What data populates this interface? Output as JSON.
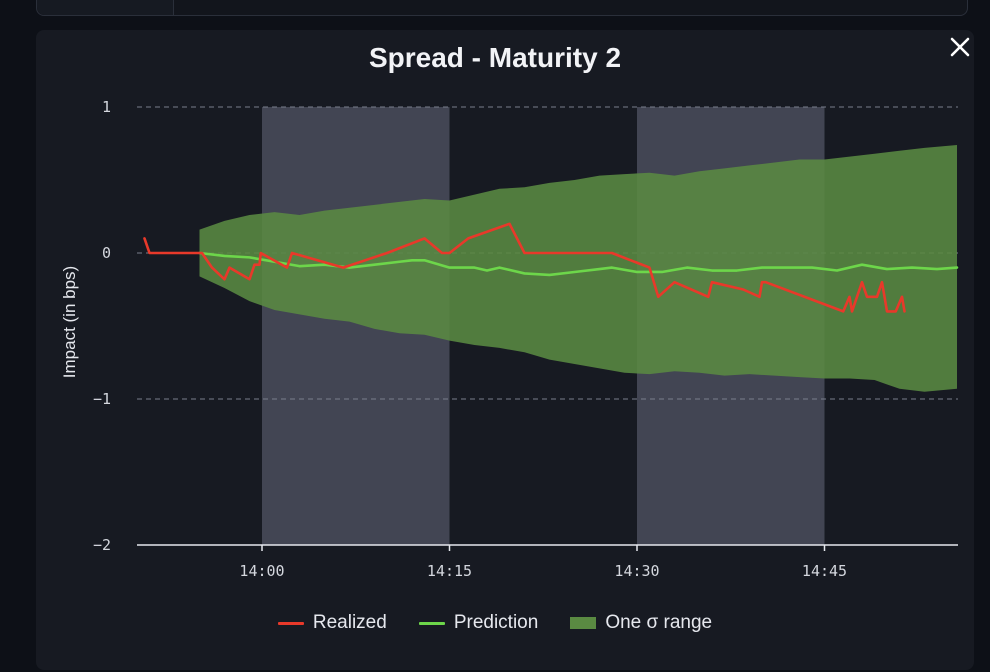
{
  "dialog": {
    "title": "Spread - Maturity 2",
    "close_icon": "close-icon"
  },
  "colors": {
    "realized": "#e8392a",
    "prediction": "#6dd64a",
    "band": "#5a8a42",
    "highlight": "#4a4e5c",
    "panel": "#171a22"
  },
  "chart_data": {
    "type": "line",
    "title": "Spread - Maturity 2",
    "ylabel": "Impact (in bps)",
    "xlabel": "",
    "x_ticks": [
      {
        "minutes": 0,
        "label": "14:00"
      },
      {
        "minutes": 15,
        "label": "14:15"
      },
      {
        "minutes": 30,
        "label": "14:30"
      },
      {
        "minutes": 45,
        "label": "14:45"
      }
    ],
    "y_ticks": [
      {
        "value": 1,
        "label": "1"
      },
      {
        "value": 0,
        "label": "0"
      },
      {
        "value": -1,
        "label": "−1"
      },
      {
        "value": -2,
        "label": "−2"
      }
    ],
    "xlim": [
      -10,
      56
    ],
    "ylim": [
      -2,
      1
    ],
    "grid": "horizontal dashed",
    "shaded_periods": [
      [
        0,
        15
      ],
      [
        30,
        45
      ]
    ],
    "legend": [
      "Realized",
      "Prediction",
      "One σ range"
    ],
    "legend_position": "bottom-center",
    "series": [
      {
        "name": "Realized",
        "points": [
          [
            -9.4,
            0.1
          ],
          [
            -9.0,
            0.0
          ],
          [
            -4.8,
            0.0
          ],
          [
            -4.0,
            -0.1
          ],
          [
            -3.0,
            -0.18
          ],
          [
            -2.6,
            -0.1
          ],
          [
            -1.0,
            -0.18
          ],
          [
            -0.6,
            -0.08
          ],
          [
            -0.2,
            -0.08
          ],
          [
            -0.1,
            0.0
          ],
          [
            2.0,
            -0.1
          ],
          [
            2.4,
            0.0
          ],
          [
            6.5,
            -0.1
          ],
          [
            10.0,
            0.0
          ],
          [
            13.0,
            0.1
          ],
          [
            14.4,
            0.0
          ],
          [
            15.0,
            0.0
          ],
          [
            16.5,
            0.1
          ],
          [
            19.8,
            0.2
          ],
          [
            21.0,
            0.0
          ],
          [
            28.0,
            0.0
          ],
          [
            31.0,
            -0.1
          ],
          [
            31.7,
            -0.3
          ],
          [
            33.0,
            -0.2
          ],
          [
            35.7,
            -0.3
          ],
          [
            36.0,
            -0.2
          ],
          [
            38.5,
            -0.25
          ],
          [
            39.8,
            -0.3
          ],
          [
            40.0,
            -0.2
          ],
          [
            40.3,
            -0.2
          ],
          [
            46.5,
            -0.4
          ],
          [
            47.0,
            -0.3
          ],
          [
            47.2,
            -0.4
          ],
          [
            47.6,
            -0.3
          ],
          [
            48.0,
            -0.2
          ],
          [
            48.4,
            -0.3
          ],
          [
            49.2,
            -0.3
          ],
          [
            49.6,
            -0.2
          ],
          [
            50.0,
            -0.4
          ],
          [
            50.7,
            -0.4
          ],
          [
            51.2,
            -0.3
          ],
          [
            51.4,
            -0.4
          ]
        ]
      },
      {
        "name": "Prediction",
        "points": [
          [
            -5,
            0.0
          ],
          [
            -3,
            -0.02
          ],
          [
            -1,
            -0.03
          ],
          [
            1,
            -0.06
          ],
          [
            3,
            -0.09
          ],
          [
            5,
            -0.08
          ],
          [
            7,
            -0.1
          ],
          [
            9,
            -0.08
          ],
          [
            11,
            -0.06
          ],
          [
            12,
            -0.05
          ],
          [
            13,
            -0.05
          ],
          [
            15,
            -0.1
          ],
          [
            17,
            -0.1
          ],
          [
            18,
            -0.12
          ],
          [
            19,
            -0.1
          ],
          [
            21,
            -0.14
          ],
          [
            23,
            -0.15
          ],
          [
            25,
            -0.13
          ],
          [
            27,
            -0.11
          ],
          [
            28,
            -0.1
          ],
          [
            30,
            -0.13
          ],
          [
            32,
            -0.13
          ],
          [
            34,
            -0.1
          ],
          [
            36,
            -0.12
          ],
          [
            38,
            -0.12
          ],
          [
            40,
            -0.1
          ],
          [
            42,
            -0.1
          ],
          [
            44,
            -0.1
          ],
          [
            46,
            -0.12
          ],
          [
            48,
            -0.08
          ],
          [
            50,
            -0.11
          ],
          [
            52,
            -0.1
          ],
          [
            54,
            -0.11
          ],
          [
            55.6,
            -0.1
          ]
        ]
      }
    ],
    "band": {
      "name": "One σ range",
      "upper": [
        [
          -5,
          0.16
        ],
        [
          -3,
          0.22
        ],
        [
          -1,
          0.26
        ],
        [
          1,
          0.28
        ],
        [
          3,
          0.26
        ],
        [
          5,
          0.29
        ],
        [
          7,
          0.31
        ],
        [
          9,
          0.33
        ],
        [
          11,
          0.35
        ],
        [
          13,
          0.37
        ],
        [
          15,
          0.36
        ],
        [
          17,
          0.4
        ],
        [
          19,
          0.44
        ],
        [
          21,
          0.45
        ],
        [
          23,
          0.48
        ],
        [
          25,
          0.5
        ],
        [
          27,
          0.53
        ],
        [
          29,
          0.54
        ],
        [
          31,
          0.55
        ],
        [
          33,
          0.53
        ],
        [
          35,
          0.56
        ],
        [
          37,
          0.58
        ],
        [
          39,
          0.6
        ],
        [
          41,
          0.62
        ],
        [
          43,
          0.64
        ],
        [
          45,
          0.64
        ],
        [
          47,
          0.66
        ],
        [
          49,
          0.68
        ],
        [
          51,
          0.7
        ],
        [
          53,
          0.72
        ],
        [
          55.6,
          0.74
        ]
      ],
      "lower": [
        [
          -5,
          -0.16
        ],
        [
          -3,
          -0.24
        ],
        [
          -1,
          -0.33
        ],
        [
          1,
          -0.39
        ],
        [
          3,
          -0.42
        ],
        [
          5,
          -0.45
        ],
        [
          7,
          -0.47
        ],
        [
          9,
          -0.52
        ],
        [
          11,
          -0.55
        ],
        [
          13,
          -0.56
        ],
        [
          15,
          -0.6
        ],
        [
          17,
          -0.63
        ],
        [
          19,
          -0.65
        ],
        [
          21,
          -0.68
        ],
        [
          23,
          -0.73
        ],
        [
          25,
          -0.76
        ],
        [
          27,
          -0.79
        ],
        [
          29,
          -0.82
        ],
        [
          31,
          -0.83
        ],
        [
          33,
          -0.81
        ],
        [
          35,
          -0.82
        ],
        [
          37,
          -0.84
        ],
        [
          39,
          -0.83
        ],
        [
          41,
          -0.84
        ],
        [
          43,
          -0.85
        ],
        [
          45,
          -0.86
        ],
        [
          47,
          -0.86
        ],
        [
          49,
          -0.87
        ],
        [
          51,
          -0.93
        ],
        [
          53,
          -0.95
        ],
        [
          55.6,
          -0.93
        ]
      ]
    }
  }
}
